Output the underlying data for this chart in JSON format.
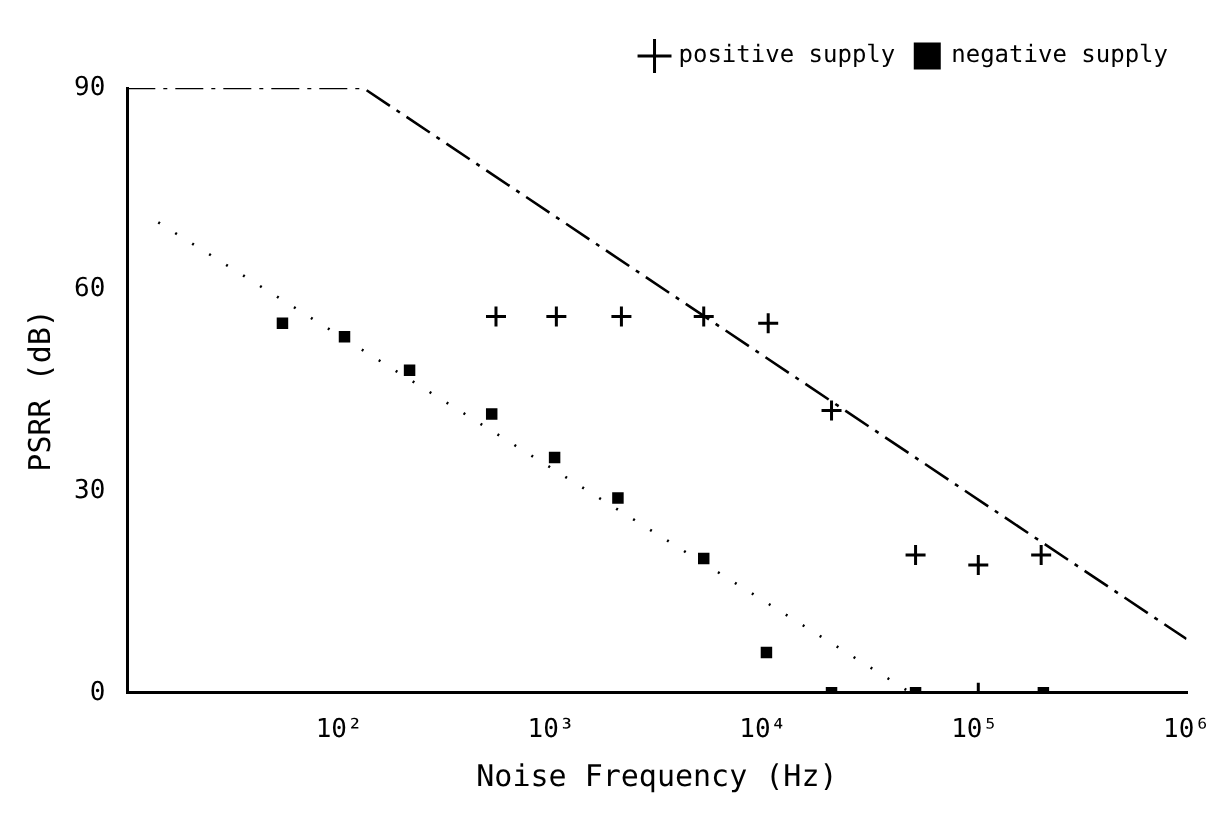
{
  "chart_data": {
    "type": "scatter",
    "xlabel": "Noise Frequency (Hz)",
    "ylabel": "PSRR (dB)",
    "log": "x",
    "xlim": [
      10,
      1000000
    ],
    "ylim": [
      0,
      90
    ],
    "xticks": [
      {
        "value": 100,
        "label": "10²"
      },
      {
        "value": 1000,
        "label": "10³"
      },
      {
        "value": 10000,
        "label": "10⁴"
      },
      {
        "value": 100000,
        "label": "10⁵"
      },
      {
        "value": 1000000,
        "label": "10⁶"
      }
    ],
    "yticks": [
      0,
      30,
      60,
      90
    ],
    "grid": false,
    "legend": "top right",
    "series": [
      {
        "name": "positive supply",
        "marker": "cross",
        "color": "#000000",
        "x": [
          550,
          1060,
          2150,
          5260,
          10600,
          21100,
          52600,
          104000,
          206000,
          104000
        ],
        "values": [
          56,
          56,
          56,
          56,
          55,
          42,
          20.5,
          19,
          20.5,
          0
        ]
      },
      {
        "name": "negative supply",
        "marker": "square",
        "color": "#000000",
        "x": [
          54,
          106,
          215,
          525,
          1040,
          2070,
          5260,
          10400,
          21100,
          52600,
          211000
        ],
        "values": [
          55,
          53,
          48,
          41.5,
          35,
          29,
          20,
          6,
          0,
          0,
          0
        ]
      },
      {
        "type": "line",
        "line_style": "dotted",
        "marker": "none",
        "color": "#000000",
        "x": [
          14,
          50000
        ],
        "values": [
          70,
          0
        ]
      },
      {
        "type": "line",
        "line_style": "dashed",
        "marker": "none",
        "color": "#000000",
        "x": [
          10,
          130,
          1000000
        ],
        "values": [
          90,
          90,
          8
        ]
      }
    ]
  }
}
